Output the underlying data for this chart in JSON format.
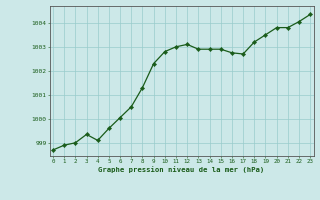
{
  "x": [
    0,
    1,
    2,
    3,
    4,
    5,
    6,
    7,
    8,
    9,
    10,
    11,
    12,
    13,
    14,
    15,
    16,
    17,
    18,
    19,
    20,
    21,
    22,
    23
  ],
  "y": [
    998.7,
    998.9,
    999.0,
    999.35,
    999.1,
    999.6,
    1000.05,
    1000.5,
    1001.3,
    1002.3,
    1002.8,
    1003.0,
    1003.1,
    1002.9,
    1002.9,
    1002.9,
    1002.75,
    1002.7,
    1003.2,
    1003.5,
    1003.8,
    1003.8,
    1004.05,
    1004.35
  ],
  "line_color": "#1a5c1a",
  "marker_color": "#1a5c1a",
  "bg_color": "#cce8e8",
  "grid_color": "#99cccc",
  "ylabel_ticks": [
    999,
    1000,
    1001,
    1002,
    1003,
    1004
  ],
  "xticks": [
    0,
    1,
    2,
    3,
    4,
    5,
    6,
    7,
    8,
    9,
    10,
    11,
    12,
    13,
    14,
    15,
    16,
    17,
    18,
    19,
    20,
    21,
    22,
    23
  ],
  "xlabel": "Graphe pression niveau de la mer (hPa)",
  "ylim": [
    998.45,
    1004.7
  ],
  "xlim": [
    -0.3,
    23.3
  ],
  "xlabel_color": "#1a5c1a",
  "tick_color": "#1a5c1a",
  "axis_color": "#1a5c1a",
  "spine_color": "#555555"
}
